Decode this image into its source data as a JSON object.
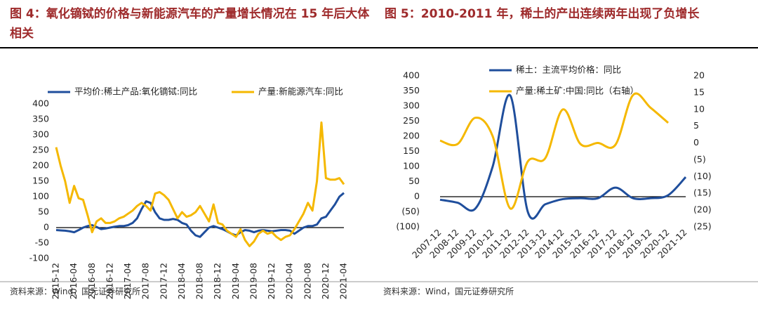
{
  "chart_data": [
    {
      "type": "line",
      "title": "图 4：氧化镝铽的价格与新能源汽车的产量增长情况在 15 年后大体相关",
      "source": "资料来源：Wind，国元证券研究所",
      "categories": [
        "2015-12",
        null,
        null,
        null,
        "2016-04",
        null,
        null,
        null,
        "2016-08",
        null,
        null,
        null,
        "2016-12",
        null,
        null,
        null,
        "2017-04",
        null,
        null,
        null,
        "2017-08",
        null,
        null,
        null,
        "2017-12",
        null,
        null,
        null,
        "2018-04",
        null,
        null,
        null,
        "2018-08",
        null,
        null,
        null,
        "2018-12",
        null,
        null,
        null,
        "2019-04",
        null,
        null,
        null,
        "2019-08",
        null,
        null,
        null,
        "2019-12",
        null,
        null,
        null,
        "2020-04",
        null,
        null,
        null,
        "2020-08",
        null,
        null,
        null,
        "2020-12",
        null,
        null,
        null,
        "2021-04"
      ],
      "ylim": [
        -100,
        400
      ],
      "yticks": [
        -100,
        -50,
        0,
        50,
        100,
        150,
        200,
        250,
        300,
        350,
        400
      ],
      "smooth": false,
      "series": [
        {
          "name": "平均价:稀土产品:氧化镝铽:同比",
          "color": "#1f4e9c",
          "values": [
            -8,
            -9,
            -10,
            -12,
            -15,
            -8,
            0,
            5,
            8,
            2,
            -5,
            -3,
            0,
            3,
            5,
            5,
            8,
            15,
            30,
            60,
            85,
            80,
            50,
            30,
            25,
            25,
            28,
            25,
            15,
            10,
            -10,
            -25,
            -30,
            -15,
            0,
            5,
            0,
            -5,
            -12,
            -20,
            -25,
            -15,
            -8,
            -10,
            -15,
            -10,
            -8,
            -10,
            -12,
            -10,
            -8,
            -8,
            -10,
            -20,
            -10,
            0,
            5,
            5,
            10,
            30,
            35,
            55,
            75,
            100,
            112
          ]
        },
        {
          "name": "产量:新能源汽车:同比",
          "color": "#f5b800",
          "values": [
            260,
            200,
            150,
            80,
            135,
            95,
            90,
            40,
            -15,
            20,
            30,
            15,
            15,
            20,
            30,
            35,
            45,
            55,
            70,
            80,
            70,
            55,
            110,
            115,
            105,
            90,
            60,
            30,
            50,
            35,
            40,
            50,
            70,
            45,
            20,
            75,
            15,
            10,
            -10,
            -20,
            -30,
            -5,
            -40,
            -60,
            -45,
            -20,
            -10,
            -20,
            -15,
            -30,
            -40,
            -30,
            -25,
            -5,
            20,
            45,
            80,
            55,
            150,
            340,
            160,
            155,
            155,
            160,
            140
          ]
        }
      ]
    },
    {
      "type": "line",
      "title": "图 5：2010-2011 年，稀土的产出连续两年出现了负增长",
      "source": "资料来源：Wind，国元证券研究所",
      "categories": [
        "2007-12",
        "2008-12",
        "2009-12",
        "2010-12",
        "2011-12",
        "2012-12",
        "2013-12",
        "2014-12",
        "2015-12",
        "2016-12",
        "2017-12",
        "2018-12",
        "2019-12",
        "2020-12",
        "2021-12"
      ],
      "ylim": [
        -100,
        400
      ],
      "yticks": [
        {
          "value": -100,
          "label": "(100)"
        },
        {
          "value": -50,
          "label": "(50)"
        },
        0,
        50,
        100,
        150,
        200,
        250,
        300,
        350,
        400
      ],
      "y2lim": [
        -25,
        20
      ],
      "y2ticks": [
        {
          "value": -25,
          "label": "(25)"
        },
        {
          "value": -20,
          "label": "(20)"
        },
        {
          "value": -15,
          "label": "(15)"
        },
        {
          "value": -10,
          "label": "(10)"
        },
        {
          "value": -5,
          "label": "(5)"
        },
        0,
        5,
        10,
        15,
        20
      ],
      "negative_tick_color": "#e60000",
      "smooth": true,
      "series": [
        {
          "name": "稀土：主流平均价格：同比",
          "color": "#1f4e9c",
          "values": [
            -10,
            -20,
            -40,
            100,
            335,
            -50,
            -25,
            -8,
            -5,
            -5,
            30,
            -5,
            -5,
            5,
            65
          ]
        },
        {
          "name": "产量:稀土矿:中国:同比（右轴）",
          "color": "#f5b800",
          "axis": "y2",
          "values": [
            0.7,
            -0.3,
            7.5,
            2,
            -19.5,
            -5.5,
            -4.5,
            10,
            -0.3,
            0,
            -0.5,
            14.3,
            10.5,
            6,
            null
          ]
        }
      ]
    }
  ]
}
